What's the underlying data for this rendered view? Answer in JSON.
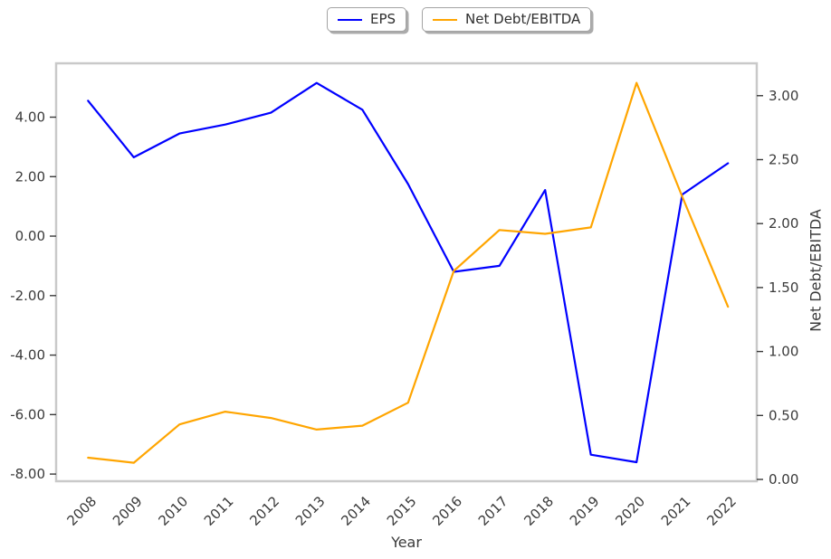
{
  "chart_data": {
    "type": "line",
    "title": "",
    "xlabel": "Year",
    "ylabel_left": "",
    "ylabel_right": "Net Debt/EBITDA",
    "grid": false,
    "categories": [
      "2008",
      "2009",
      "2010",
      "2011",
      "2012",
      "2013",
      "2014",
      "2015",
      "2016",
      "2017",
      "2018",
      "2019",
      "2020",
      "2021",
      "2022"
    ],
    "series": [
      {
        "name": "EPS",
        "axis": "left",
        "color": "#0000FF",
        "values": [
          4.55,
          2.65,
          3.45,
          3.75,
          4.15,
          5.15,
          4.25,
          1.75,
          -1.2,
          -1.0,
          1.55,
          -7.35,
          -7.6,
          1.4,
          2.45
        ]
      },
      {
        "name": "Net Debt/EBITDA",
        "axis": "right",
        "color": "#FFA500",
        "values": [
          0.17,
          0.13,
          0.43,
          0.53,
          0.48,
          0.39,
          0.42,
          0.6,
          1.63,
          1.95,
          1.92,
          1.97,
          3.1,
          2.21,
          1.35
        ]
      }
    ],
    "axes": {
      "x": {
        "min": -0.7,
        "max": 14.63
      },
      "left": {
        "min": -8.24,
        "max": 5.81,
        "ticks": [
          4,
          2,
          0,
          -2,
          -4,
          -6,
          -8
        ],
        "tick_labels": [
          "4.00",
          "2.00",
          "0.00",
          "-2.00",
          "-4.00",
          "-6.00",
          "-8.00"
        ]
      },
      "right": {
        "min": -0.014,
        "max": 3.253,
        "ticks": [
          3.0,
          2.5,
          2.0,
          1.5,
          1.0,
          0.5,
          0.0
        ],
        "tick_labels": [
          "3.00",
          "2.50",
          "2.00",
          "1.50",
          "1.00",
          "0.50",
          "0.00"
        ]
      }
    },
    "legend": {
      "position": "upper center",
      "items": [
        {
          "label": "EPS",
          "color": "#0000FF"
        },
        {
          "label": "Net Debt/EBITDA",
          "color": "#FFA500"
        }
      ]
    }
  },
  "styles": {
    "background": "#ffffff",
    "spine_color": "#c9c9c9",
    "tick_color": "#3a3a3a",
    "text_color": "#3a3a3a"
  }
}
